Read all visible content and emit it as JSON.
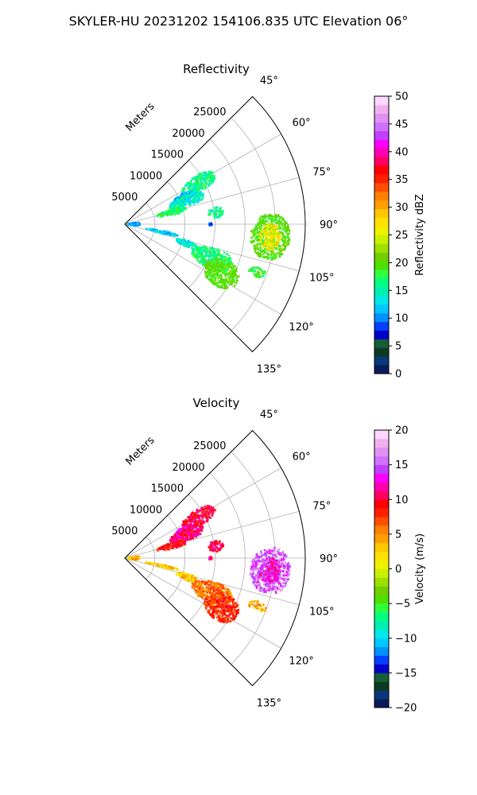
{
  "figure_title": "SKYLER-HU  20231202  154106.835 UTC Elevation 06°",
  "chart_data": [
    {
      "type": "heatmap",
      "subtype": "polar-sector radar PPI",
      "title": "Reflectivity",
      "radial_label": "Meters",
      "radial_range": [
        0,
        30000
      ],
      "radial_ticks": [
        5000,
        10000,
        15000,
        20000,
        25000
      ],
      "angle_range_deg": [
        45,
        135
      ],
      "angle_ticks": [
        "45°",
        "60°",
        "75°",
        "90°",
        "105°",
        "120°",
        "135°"
      ],
      "grid": true,
      "colorbar": {
        "label": "Reflectivity dBZ",
        "range": [
          0,
          50
        ],
        "ticks": [
          "0",
          "5",
          "10",
          "15",
          "20",
          "25",
          "30",
          "35",
          "40",
          "45",
          "50"
        ],
        "colors": [
          "#0a1a5c",
          "#083878",
          "#0a3a20",
          "#155e36",
          "#0000c8",
          "#0040ff",
          "#0090ff",
          "#00c8ff",
          "#00e8e8",
          "#00f0b0",
          "#00ff80",
          "#30ff40",
          "#50e000",
          "#70d000",
          "#a0e000",
          "#c8f000",
          "#f0f000",
          "#ffe000",
          "#ffc800",
          "#ffa000",
          "#ff8000",
          "#ff5000",
          "#ff2000",
          "#ff0000",
          "#ff0060",
          "#ff00b0",
          "#ff00ff",
          "#c040ff",
          "#d070ff",
          "#e090f0",
          "#f0b0f0",
          "#ffd8ff"
        ]
      },
      "echoes": [
        {
          "az": [
            56,
            66
          ],
          "range": [
            11000,
            17000
          ],
          "value": 16
        },
        {
          "az": [
            62,
            70
          ],
          "range": [
            9000,
            12500
          ],
          "value": 11
        },
        {
          "az": [
            64,
            74
          ],
          "range": [
            8000,
            14000
          ],
          "value": 14
        },
        {
          "az": [
            72,
            79
          ],
          "range": [
            5500,
            10500
          ],
          "value": 17
        },
        {
          "az": [
            79,
            86
          ],
          "range": [
            14000,
            16500
          ],
          "value": 16
        },
        {
          "az": [
            81,
            99
          ],
          "range": [
            500,
            2500
          ],
          "value": 11
        },
        {
          "az": [
            89,
            91
          ],
          "range": [
            14000,
            14500
          ],
          "value": 10
        },
        {
          "az": [
            86,
            104
          ],
          "range": [
            21000,
            27500
          ],
          "value": 20
        },
        {
          "az": [
            90,
            100
          ],
          "range": [
            22500,
            26000
          ],
          "value": 27
        },
        {
          "az": [
            93,
            99
          ],
          "range": [
            23500,
            25500
          ],
          "value": 25
        },
        {
          "az": [
            100,
            104
          ],
          "range": [
            3500,
            9000
          ],
          "value": 12
        },
        {
          "az": [
            104,
            110
          ],
          "range": [
            9000,
            12500
          ],
          "value": 14
        },
        {
          "az": [
            105,
            118
          ],
          "range": [
            12000,
            19000
          ],
          "value": 17
        },
        {
          "az": [
            110,
            124
          ],
          "range": [
            15000,
            21000
          ],
          "value": 20
        },
        {
          "az": [
            108,
            112
          ],
          "range": [
            22000,
            25000
          ],
          "value": 18
        }
      ]
    },
    {
      "type": "heatmap",
      "subtype": "polar-sector radar PPI",
      "title": "Velocity",
      "radial_label": "Meters",
      "radial_range": [
        0,
        30000
      ],
      "radial_ticks": [
        5000,
        10000,
        15000,
        20000,
        25000
      ],
      "angle_range_deg": [
        45,
        135
      ],
      "angle_ticks": [
        "45°",
        "60°",
        "75°",
        "90°",
        "105°",
        "120°",
        "135°"
      ],
      "grid": true,
      "colorbar": {
        "label": "Velocity (m/s)",
        "range": [
          -20,
          20
        ],
        "ticks": [
          "−20",
          "−15",
          "−10",
          "−5",
          "0",
          "5",
          "10",
          "15",
          "20"
        ],
        "colors": [
          "#0a1a5c",
          "#083878",
          "#0a3a20",
          "#155e36",
          "#0000c8",
          "#0040ff",
          "#0090ff",
          "#00c8ff",
          "#00e8e8",
          "#00f0b0",
          "#00ff80",
          "#30ff40",
          "#50e000",
          "#70d000",
          "#a0e000",
          "#c8f000",
          "#f0f000",
          "#ffe000",
          "#ffc800",
          "#ffa000",
          "#ff8000",
          "#ff5000",
          "#ff2000",
          "#ff0000",
          "#ff0060",
          "#ff00b0",
          "#ff00ff",
          "#c040ff",
          "#d070ff",
          "#e090f0",
          "#f0b0f0",
          "#ffd8ff"
        ]
      },
      "echoes": [
        {
          "az": [
            56,
            66
          ],
          "range": [
            11000,
            17000
          ],
          "value": 10
        },
        {
          "az": [
            62,
            70
          ],
          "range": [
            9000,
            12500
          ],
          "value": 13
        },
        {
          "az": [
            64,
            74
          ],
          "range": [
            8000,
            14000
          ],
          "value": 11
        },
        {
          "az": [
            72,
            79
          ],
          "range": [
            5500,
            10500
          ],
          "value": 9
        },
        {
          "az": [
            79,
            86
          ],
          "range": [
            14000,
            16500
          ],
          "value": 10
        },
        {
          "az": [
            81,
            99
          ],
          "range": [
            500,
            2500
          ],
          "value": 4
        },
        {
          "az": [
            89,
            91
          ],
          "range": [
            14000,
            14500
          ],
          "value": 11
        },
        {
          "az": [
            86,
            104
          ],
          "range": [
            21000,
            27500
          ],
          "value": 15
        },
        {
          "az": [
            90,
            100
          ],
          "range": [
            22500,
            26000
          ],
          "value": 13
        },
        {
          "az": [
            93,
            99
          ],
          "range": [
            23500,
            25500
          ],
          "value": 12
        },
        {
          "az": [
            100,
            104
          ],
          "range": [
            3500,
            9000
          ],
          "value": 3
        },
        {
          "az": [
            104,
            110
          ],
          "range": [
            9000,
            12500
          ],
          "value": 3
        },
        {
          "az": [
            105,
            118
          ],
          "range": [
            12000,
            19000
          ],
          "value": 6
        },
        {
          "az": [
            110,
            124
          ],
          "range": [
            15000,
            21000
          ],
          "value": 8
        },
        {
          "az": [
            108,
            112
          ],
          "range": [
            22000,
            25000
          ],
          "value": 4
        }
      ]
    }
  ]
}
